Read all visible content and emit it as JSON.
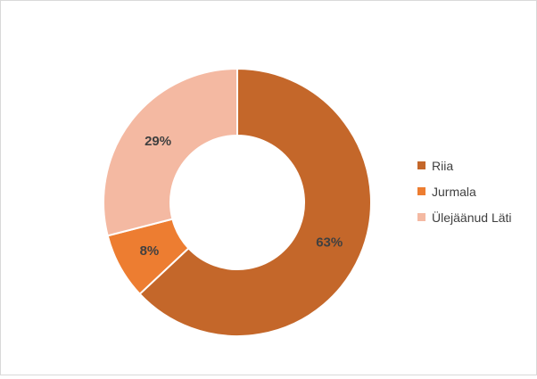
{
  "chart_data": {
    "type": "pie",
    "donut": true,
    "categories": [
      "Riia",
      "Jurmala",
      "Ülejäänud Läti"
    ],
    "values": [
      63,
      8,
      29
    ],
    "labels": [
      "63%",
      "8%",
      "29%"
    ],
    "colors": [
      "#c4672a",
      "#ed7d31",
      "#f4b9a2"
    ],
    "legend_position": "right",
    "title": ""
  }
}
